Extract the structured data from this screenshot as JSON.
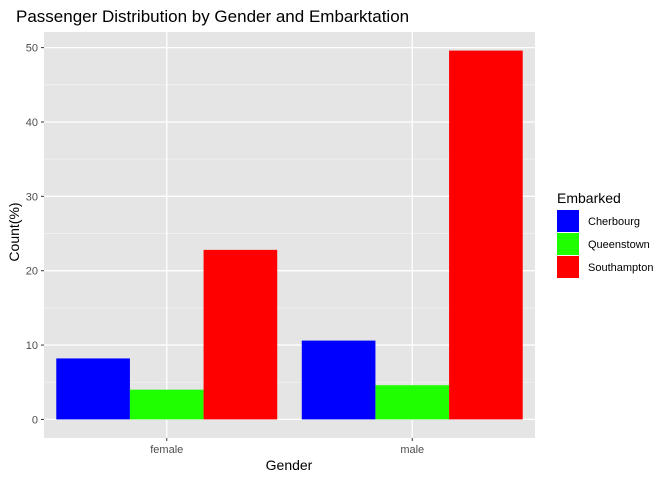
{
  "chart_data": {
    "type": "bar",
    "title": "Passenger Distribution by Gender and Embarktation",
    "xlabel": "Gender",
    "ylabel": "Count(%)",
    "categories": [
      "female",
      "male"
    ],
    "series": [
      {
        "name": "Cherbourg",
        "color": "#0000FF",
        "values": [
          8.2,
          10.6
        ]
      },
      {
        "name": "Queenstown",
        "color": "#1FFF00",
        "values": [
          4.0,
          4.6
        ]
      },
      {
        "name": "Southampton",
        "color": "#FF0000",
        "values": [
          22.8,
          49.6
        ]
      }
    ],
    "yticks": [
      0,
      10,
      20,
      30,
      40,
      50
    ],
    "ylim": [
      -2.5,
      52.1
    ],
    "legend_title": "Embarked",
    "legend_position": "right",
    "panel_background": "#E5E5E5",
    "grid": true
  }
}
